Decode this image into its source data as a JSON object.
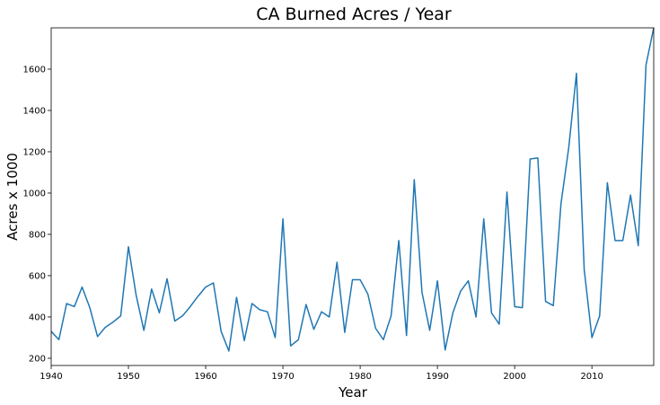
{
  "chart_data": {
    "type": "line",
    "title": "CA Burned Acres / Year",
    "xlabel": "Year",
    "ylabel": "Acres x 1000",
    "xlim": [
      1940,
      2018
    ],
    "ylim": [
      165,
      1800
    ],
    "xticks": [
      1940,
      1950,
      1960,
      1970,
      1980,
      1990,
      2000,
      2010
    ],
    "xtick_labels": [
      "1940",
      "1950",
      "1960",
      "1970",
      "1980",
      "1990",
      "2000",
      "2010"
    ],
    "yticks": [
      200,
      400,
      600,
      800,
      1000,
      1200,
      1400,
      1600
    ],
    "ytick_labels": [
      "200",
      "400",
      "600",
      "800",
      "1000",
      "1200",
      "1400",
      "1600"
    ],
    "grid": false,
    "legend": "none",
    "line_color": "#1f77b4",
    "series": [
      {
        "x": [
          1940,
          1941,
          1942,
          1943,
          1944,
          1945,
          1946,
          1947,
          1948,
          1949,
          1950,
          1951,
          1952,
          1953,
          1954,
          1955,
          1956,
          1957,
          1958,
          1959,
          1960,
          1961,
          1962,
          1963,
          1964,
          1965,
          1966,
          1967,
          1968,
          1969,
          1970,
          1971,
          1972,
          1973,
          1974,
          1975,
          1976,
          1977,
          1978,
          1979,
          1980,
          1981,
          1982,
          1983,
          1984,
          1985,
          1986,
          1987,
          1988,
          1989,
          1990,
          1991,
          1992,
          1993,
          1994,
          1995,
          1996,
          1997,
          1998,
          1999,
          2000,
          2001,
          2002,
          2003,
          2004,
          2005,
          2006,
          2007,
          2008,
          2009,
          2010,
          2011,
          2012,
          2013,
          2014,
          2015,
          2016,
          2017,
          2018
        ],
        "values": [
          330,
          290,
          465,
          450,
          545,
          445,
          305,
          350,
          375,
          405,
          740,
          505,
          335,
          535,
          420,
          585,
          380,
          405,
          450,
          500,
          545,
          565,
          330,
          235,
          495,
          285,
          465,
          435,
          425,
          300,
          875,
          260,
          290,
          460,
          340,
          425,
          400,
          665,
          325,
          580,
          580,
          510,
          345,
          290,
          405,
          770,
          310,
          1065,
          520,
          335,
          575,
          240,
          420,
          525,
          575,
          400,
          875,
          420,
          365,
          1005,
          450,
          445,
          1165,
          1170,
          475,
          455,
          950,
          1220,
          1580,
          630,
          300,
          405,
          1050,
          770,
          770,
          990,
          745,
          1620,
          1800
        ]
      }
    ]
  }
}
